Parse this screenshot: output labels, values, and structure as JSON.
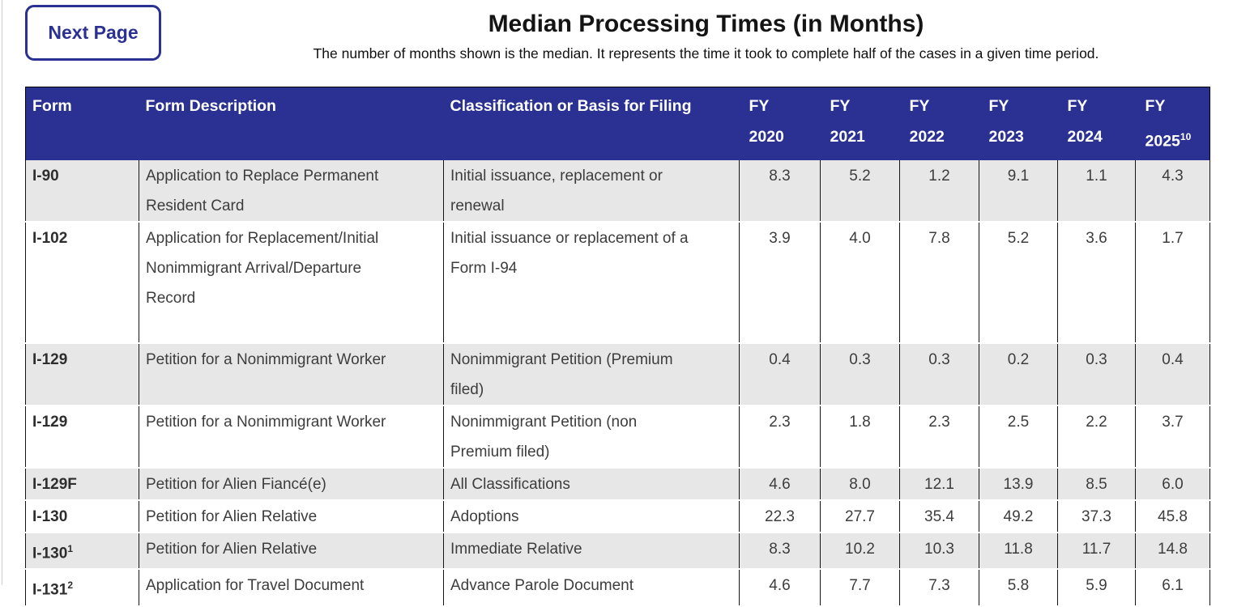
{
  "header": {
    "next_page_button": "Next Page",
    "title": "Median Processing Times (in Months)",
    "subtitle": "The number of months shown is the median. It represents the time it took to complete half of the cases in a given time period."
  },
  "colors": {
    "accent_navy": "#2b3192",
    "row_alt_gray": "#e7e7e7",
    "header_text": "#ffffff",
    "body_text": "#3d3d3d"
  },
  "table": {
    "columns": [
      {
        "label": "Form"
      },
      {
        "label": "Form Description"
      },
      {
        "label": "Classification or Basis for Filing"
      },
      {
        "label": "FY",
        "year": "2020"
      },
      {
        "label": "FY",
        "year": "2021"
      },
      {
        "label": "FY",
        "year": "2022"
      },
      {
        "label": "FY",
        "year": "2023"
      },
      {
        "label": "FY",
        "year": "2024"
      },
      {
        "label": "FY",
        "year": "2025",
        "sup": "10"
      }
    ],
    "rows": [
      {
        "form": "I-90",
        "form_sup": "",
        "description": "Application to Replace Permanent Resident Card",
        "classification": "Initial issuance, replacement or renewal",
        "values": [
          "8.3",
          "5.2",
          "1.2",
          "9.1",
          "1.1",
          "4.3"
        ]
      },
      {
        "form": "I-102",
        "form_sup": "",
        "description": "Application for Replacement/Initial Nonimmigrant Arrival/Departure Record",
        "classification": "Initial issuance or replacement of a Form I-94",
        "values": [
          "3.9",
          "4.0",
          "7.8",
          "5.2",
          "3.6",
          "1.7"
        ]
      },
      {
        "form": "I-129",
        "form_sup": "",
        "description": "Petition for a Nonimmigrant Worker",
        "classification": "Nonimmigrant Petition (Premium filed)",
        "values": [
          "0.4",
          "0.3",
          "0.3",
          "0.2",
          "0.3",
          "0.4"
        ]
      },
      {
        "form": "I-129",
        "form_sup": "",
        "description": "Petition for a Nonimmigrant Worker",
        "classification": "Nonimmigrant Petition (non Premium filed)",
        "values": [
          "2.3",
          "1.8",
          "2.3",
          "2.5",
          "2.2",
          "3.7"
        ]
      },
      {
        "form": "I-129F",
        "form_sup": "",
        "description": "Petition for Alien Fiancé(e)",
        "classification": "All Classifications",
        "values": [
          "4.6",
          "8.0",
          "12.1",
          "13.9",
          "8.5",
          "6.0"
        ]
      },
      {
        "form": "I-130",
        "form_sup": "",
        "description": "Petition for Alien Relative",
        "classification": "Adoptions",
        "values": [
          "22.3",
          "27.7",
          "35.4",
          "49.2",
          "37.3",
          "45.8"
        ]
      },
      {
        "form": "I-130",
        "form_sup": "1",
        "description": "Petition for Alien Relative",
        "classification": "Immediate Relative",
        "values": [
          "8.3",
          "10.2",
          "10.3",
          "11.8",
          "11.7",
          "14.8"
        ]
      },
      {
        "form": "I-131",
        "form_sup": "2",
        "description": "Application for Travel Document",
        "classification": "Advance Parole Document",
        "values": [
          "4.6",
          "7.7",
          "7.3",
          "5.8",
          "5.9",
          "6.1"
        ]
      }
    ]
  }
}
